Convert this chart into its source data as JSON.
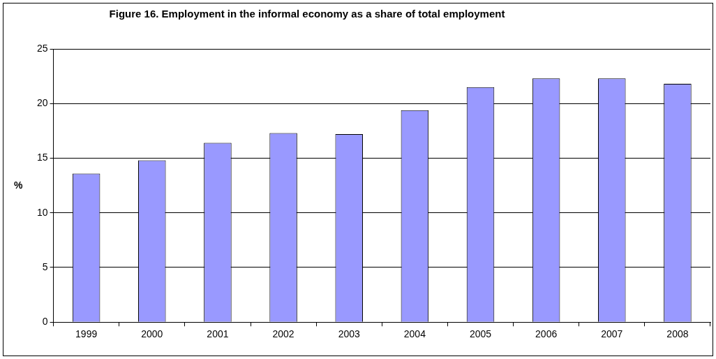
{
  "chart_data": {
    "type": "bar",
    "title": "Figure 16. Employment in the informal economy as a share of total employment",
    "ylabel": "%",
    "categories": [
      "1999",
      "2000",
      "2001",
      "2002",
      "2003",
      "2004",
      "2005",
      "2006",
      "2007",
      "2008"
    ],
    "values": [
      13.6,
      14.8,
      16.4,
      17.3,
      17.2,
      19.4,
      21.5,
      22.3,
      22.3,
      21.8
    ],
    "color": "#9999ff",
    "ylim": [
      0,
      25
    ],
    "yticks": [
      0,
      5,
      10,
      15,
      20,
      25
    ],
    "grid": "y",
    "legend": false
  }
}
